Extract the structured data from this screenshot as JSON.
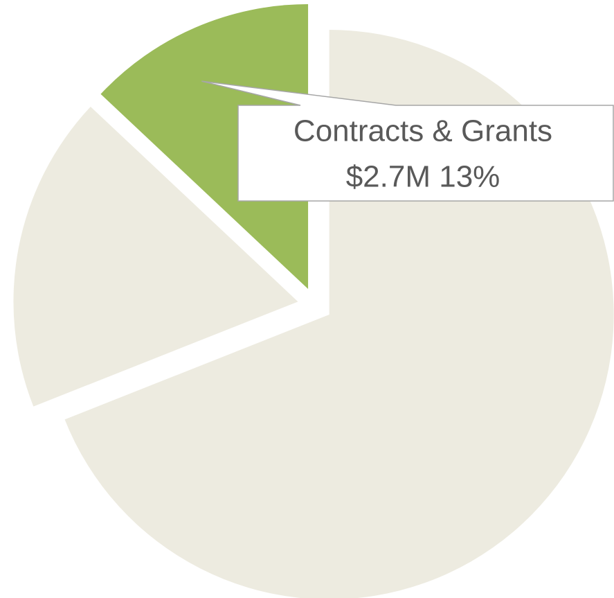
{
  "chart_data": {
    "type": "pie",
    "categories": [
      null,
      null,
      "Contracts & Grants"
    ],
    "values": [
      69,
      18,
      13
    ],
    "value_labels": [
      null,
      null,
      "$2.7M 13%"
    ],
    "colors": [
      "#edebe0",
      "#edebe0",
      "#9bbb59"
    ]
  }
}
